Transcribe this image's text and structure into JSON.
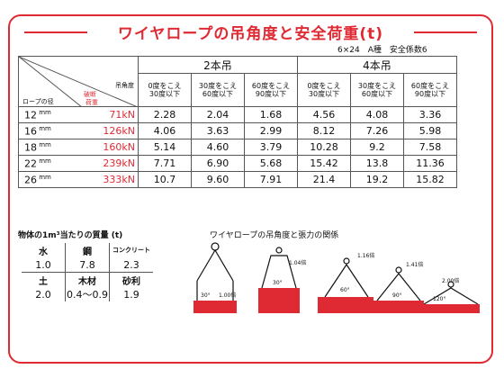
{
  "title": "ワイヤロープの吊角度と安全荷重(t)",
  "spec": "6×24　A種　安全係数6",
  "table": {
    "corner_angle": "吊角度",
    "corner_dia": "ロープの径",
    "corner_load": "荷重",
    "corner_break": "破断",
    "group2": "2本吊",
    "group4": "4本吊",
    "angles": [
      "0度をこえ\n30度以下",
      "30度をこえ\n60度以下",
      "60度をこえ\n90度以下",
      "0度をこえ\n30度以下",
      "30度をこえ\n60度以下",
      "60度をこえ\n90度以下"
    ],
    "rows": [
      {
        "dia": "12",
        "unit": "mm",
        "break": "71kN",
        "v": [
          "2.28",
          "2.04",
          "1.68",
          "4.56",
          "4.08",
          "3.36"
        ]
      },
      {
        "dia": "16",
        "unit": "mm",
        "break": "126kN",
        "v": [
          "4.06",
          "3.63",
          "2.99",
          "8.12",
          "7.26",
          "5.98"
        ]
      },
      {
        "dia": "18",
        "unit": "mm",
        "break": "160kN",
        "v": [
          "5.14",
          "4.60",
          "3.79",
          "10.28",
          "9.2",
          "7.58"
        ]
      },
      {
        "dia": "22",
        "unit": "mm",
        "break": "239kN",
        "v": [
          "7.71",
          "6.90",
          "5.68",
          "15.42",
          "13.8",
          "11.36"
        ]
      },
      {
        "dia": "26",
        "unit": "mm",
        "break": "333kN",
        "v": [
          "10.7",
          "9.60",
          "7.91",
          "21.4",
          "19.2",
          "15.82"
        ]
      }
    ]
  },
  "mass": {
    "title": "物体の1m³当たりの質量 (t)",
    "items": [
      {
        "name": "水",
        "value": "1.0"
      },
      {
        "name": "鋼",
        "value": "7.8"
      },
      {
        "name": "コンクリート",
        "value": "2.3"
      },
      {
        "name": "土",
        "value": "2.0"
      },
      {
        "name": "木材",
        "value": "0.4～0.9"
      },
      {
        "name": "砂利",
        "value": "1.9"
      }
    ]
  },
  "relation": {
    "title": "ワイヤロープの吊角度と張力の関係",
    "labels": [
      "30°",
      "1.00倍",
      "1.04倍",
      "30°",
      "1.16倍",
      "60°",
      "1.41倍",
      "90°",
      "2.00倍",
      "120°"
    ]
  },
  "colors": {
    "accent": "#e02a33",
    "text": "#111111"
  }
}
